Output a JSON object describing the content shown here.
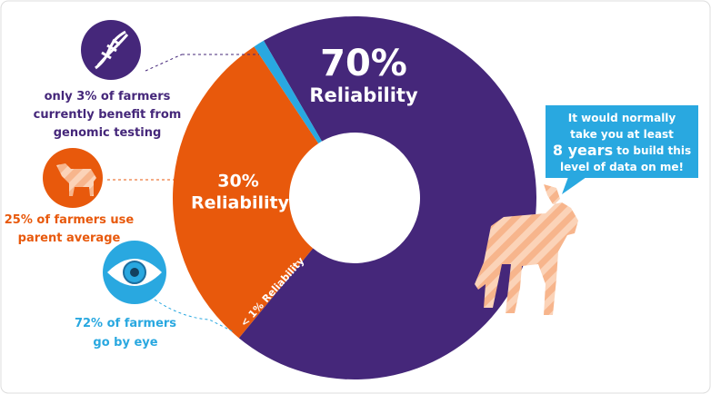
{
  "chart_data": {
    "type": "donut",
    "values": [
      70,
      30,
      1
    ],
    "value_labels": [
      "70%",
      "30%",
      "< 1%"
    ],
    "labels": [
      "Reliability",
      "Reliability",
      "Reliability"
    ],
    "colors": [
      "#45277a",
      "#e8590c",
      "#29a8e0"
    ]
  },
  "callouts": [
    {
      "color": "#45277a",
      "lines": [
        [
          {
            "text": "only "
          },
          {
            "text": "3%",
            "bold": true
          },
          {
            "text": " of farmers"
          }
        ],
        [
          {
            "text": "currently benefit from"
          }
        ],
        [
          {
            "text": "genomic testing"
          }
        ]
      ]
    },
    {
      "color": "#e8590c",
      "lines": [
        [
          {
            "text": "25% of farmers use"
          }
        ],
        [
          {
            "text": "parent average"
          }
        ]
      ]
    },
    {
      "color": "#29a8e0",
      "lines": [
        [
          {
            "text": "72% of farmers"
          }
        ],
        [
          {
            "text": "go by eye"
          }
        ]
      ]
    }
  ],
  "speech_bubble": {
    "lines": [
      [
        {
          "text": "It would normally"
        }
      ],
      [
        {
          "text": "take you at least"
        }
      ],
      [
        {
          "text": "8 years",
          "bold": true
        },
        {
          "text": " to build this"
        }
      ],
      [
        {
          "text": "level of data on me!"
        }
      ]
    ]
  }
}
